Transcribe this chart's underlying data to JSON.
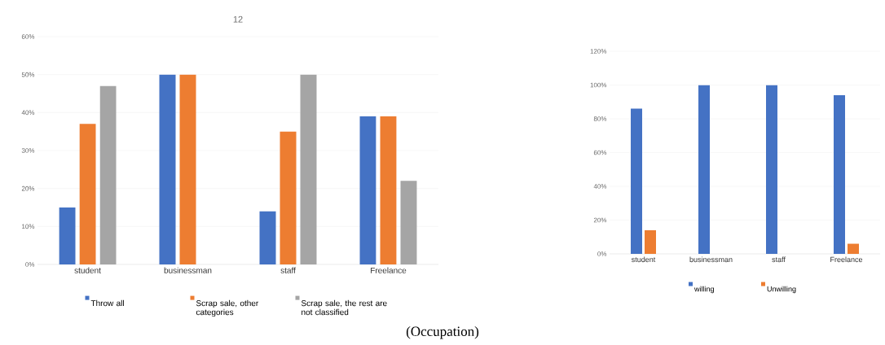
{
  "chart_data": [
    {
      "type": "bar",
      "title": "12",
      "categories": [
        "student",
        "businessman",
        "staff",
        "Freelance"
      ],
      "series": [
        {
          "name": "Throw all",
          "color": "#4472c4",
          "values": [
            15,
            50,
            14,
            39
          ]
        },
        {
          "name": "Scrap sale, other categories",
          "color": "#ed7d31",
          "values": [
            37,
            50,
            35,
            39
          ]
        },
        {
          "name": "Scrap sale, the rest are not classified",
          "color": "#a5a5a5",
          "values": [
            47,
            0,
            50,
            22
          ]
        }
      ],
      "ylim": [
        0,
        60
      ],
      "yticks": [
        {
          "value": 0,
          "label": "0%"
        },
        {
          "value": 10,
          "label": "10%"
        },
        {
          "value": 20,
          "label": "20%"
        },
        {
          "value": 30,
          "label": "30%"
        },
        {
          "value": 40,
          "label": "40%"
        },
        {
          "value": 50,
          "label": "50%"
        },
        {
          "value": 60,
          "label": "60%"
        }
      ],
      "grid": "y",
      "legend": "bottom",
      "annotations": [
        "(Occupation)"
      ]
    },
    {
      "type": "bar",
      "categories": [
        "student",
        "businessman",
        "staff",
        "Freelance"
      ],
      "series": [
        {
          "name": "willing",
          "color": "#4472c4",
          "values": [
            86,
            100,
            100,
            94
          ]
        },
        {
          "name": "Unwilling",
          "color": "#ed7d31",
          "values": [
            14,
            0,
            0,
            6
          ]
        }
      ],
      "ylim": [
        0,
        120
      ],
      "yticks": [
        {
          "value": 0,
          "label": "0%"
        },
        {
          "value": 20,
          "label": "20%"
        },
        {
          "value": 40,
          "label": "40%"
        },
        {
          "value": 60,
          "label": "60%"
        },
        {
          "value": 80,
          "label": "80%"
        },
        {
          "value": 100,
          "label": "100%"
        },
        {
          "value": 120,
          "label": "120%"
        }
      ],
      "grid": "y",
      "legend": "bottom"
    }
  ]
}
